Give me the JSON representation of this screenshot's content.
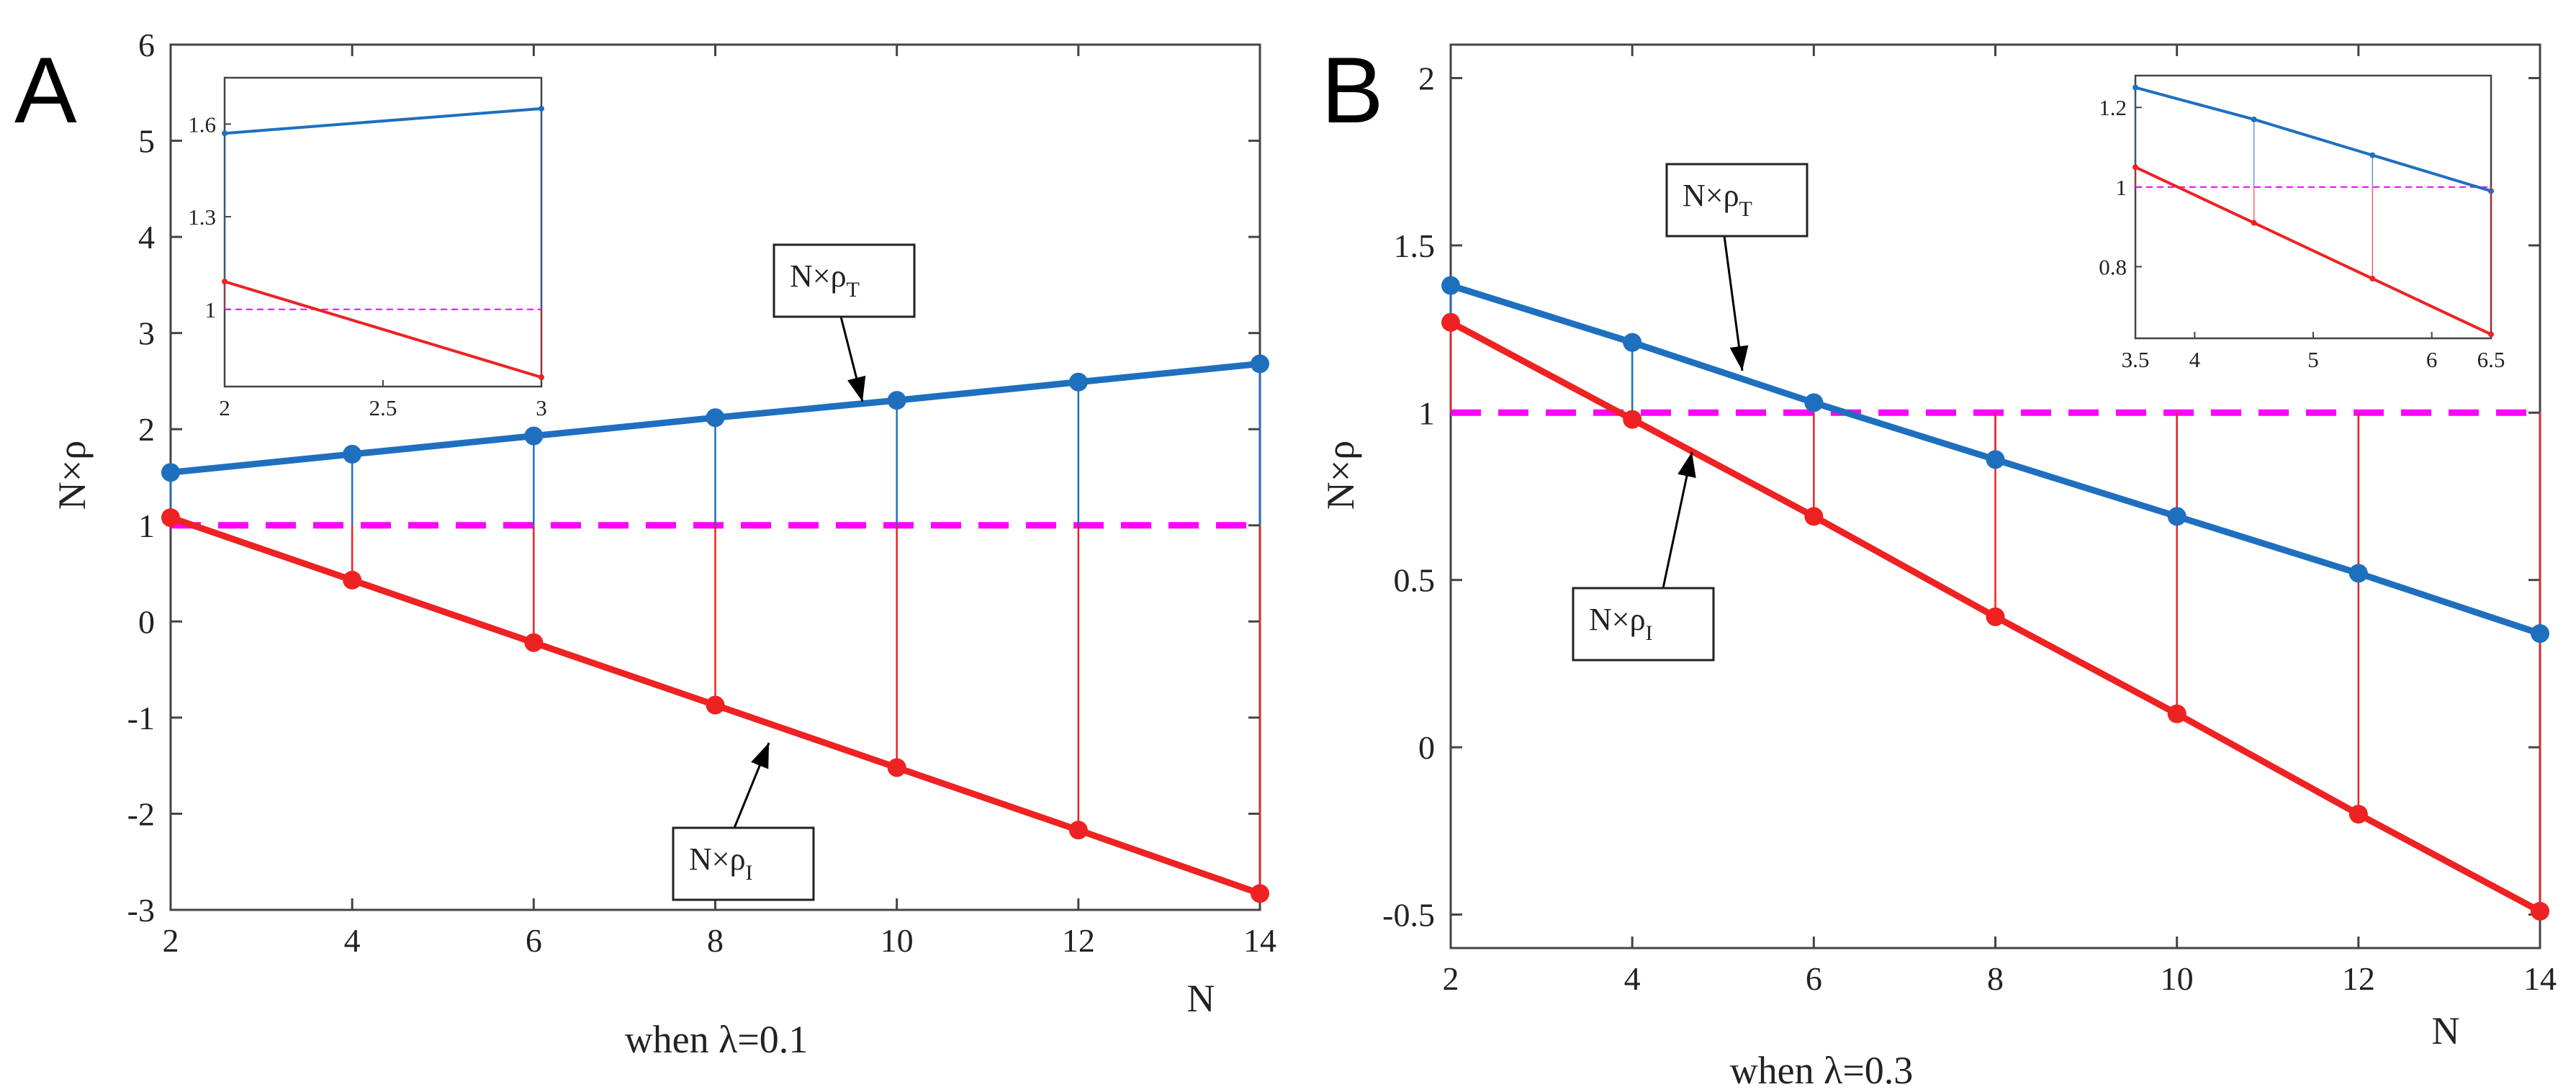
{
  "figure": {
    "colors": {
      "blue": "#1f6fbf",
      "red": "#ee2222",
      "magenta": "#ff00ff",
      "axis": "#444444"
    }
  },
  "chart_data": [
    {
      "type": "line",
      "panel_label": "A",
      "title": "",
      "xlabel": "when λ=0.1",
      "x_end_label": "N",
      "ylabel": "N×ρ",
      "xlim": [
        2,
        14
      ],
      "ylim": [
        -3,
        6
      ],
      "xticks": [
        2,
        4,
        6,
        8,
        10,
        12,
        14
      ],
      "yticks": [
        -3,
        -2,
        -1,
        0,
        1,
        2,
        3,
        4,
        5,
        6
      ],
      "x": [
        2,
        4,
        6,
        8,
        10,
        12,
        14
      ],
      "threshold": 1,
      "series": [
        {
          "name": "N×ρT",
          "label_main": "N×ρ",
          "label_sub": "T",
          "color": "#1f6fbf",
          "values": [
            1.55,
            1.74,
            1.93,
            2.12,
            2.3,
            2.49,
            2.68
          ]
        },
        {
          "name": "N×ρI",
          "label_main": "N×ρ",
          "label_sub": "I",
          "color": "#ee2222",
          "values": [
            1.08,
            0.43,
            -0.22,
            -0.87,
            -1.52,
            -2.17,
            -2.83
          ]
        }
      ],
      "inset": {
        "xlim": [
          2,
          3
        ],
        "ylim": [
          0.75,
          1.75
        ],
        "xticks": [
          2,
          2.5,
          3
        ],
        "yticks": [
          1,
          1.3,
          1.6
        ],
        "threshold": 1,
        "series": [
          {
            "name": "blue",
            "x": [
              2,
              3
            ],
            "values": [
              1.57,
              1.65
            ]
          },
          {
            "name": "red",
            "x": [
              2,
              3
            ],
            "values": [
              1.09,
              0.78
            ]
          }
        ]
      }
    },
    {
      "type": "line",
      "panel_label": "B",
      "title": "",
      "xlabel": "when λ=0.3",
      "x_end_label": "N",
      "ylabel": "N×ρ",
      "xlim": [
        2,
        14
      ],
      "ylim": [
        -0.6,
        2.1
      ],
      "xticks": [
        2,
        4,
        6,
        8,
        10,
        12,
        14
      ],
      "yticks": [
        -0.5,
        0,
        0.5,
        1,
        1.5,
        2
      ],
      "x": [
        2,
        4,
        6,
        8,
        10,
        12,
        14
      ],
      "threshold": 1,
      "series": [
        {
          "name": "N×ρT",
          "label_main": "N×ρ",
          "label_sub": "T",
          "color": "#1f6fbf",
          "values": [
            1.38,
            1.21,
            1.03,
            0.86,
            0.69,
            0.52,
            0.34
          ]
        },
        {
          "name": "N×ρI",
          "label_main": "N×ρ",
          "label_sub": "I",
          "color": "#ee2222",
          "values": [
            1.27,
            0.98,
            0.69,
            0.39,
            0.1,
            -0.2,
            -0.49
          ]
        }
      ],
      "inset": {
        "xlim": [
          3.5,
          6.5
        ],
        "ylim": [
          0.62,
          1.28
        ],
        "xticks": [
          3.5,
          4,
          5,
          6,
          6.5
        ],
        "yticks": [
          0.8,
          1,
          1.2
        ],
        "threshold": 1,
        "series": [
          {
            "name": "blue",
            "x": [
              3.5,
              4.5,
              5.5,
              6.5
            ],
            "values": [
              1.25,
              1.17,
              1.08,
              0.99
            ]
          },
          {
            "name": "red",
            "x": [
              3.5,
              4.5,
              5.5,
              6.5
            ],
            "values": [
              1.05,
              0.91,
              0.77,
              0.63
            ]
          }
        ]
      }
    }
  ]
}
